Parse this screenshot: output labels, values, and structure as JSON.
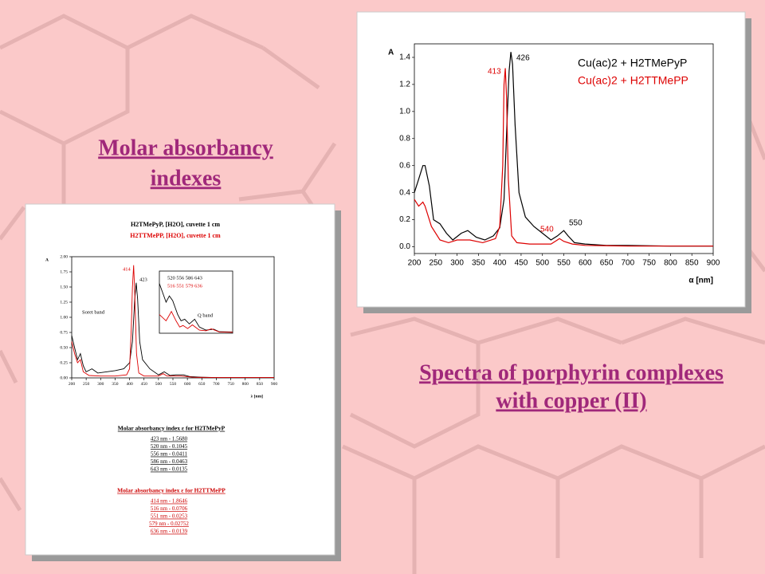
{
  "slide": {
    "left_heading": [
      "Molar absorbancy",
      "indexes"
    ],
    "right_heading": [
      "Spectra of porphyrin complexes",
      "with copper (II)"
    ]
  },
  "tables": [
    {
      "title": "Molar absorbancy index ε for H2TMePyP",
      "color": "#000000",
      "rows": [
        "423 nm - 1.5680",
        "520 nm - 0.1045",
        "556 nm - 0.0411",
        "586 nm - 0.0463",
        "643 nm - 0.0135"
      ]
    },
    {
      "title": "Molar absorbancy index ε for H2TTMePP",
      "color": "#cc0000",
      "rows": [
        "414 nm - 1.8646",
        "516 nm - 0.0706",
        "551 nm - 0.0253",
        "579 nm - 0.02752",
        "636 nm - 0.0139"
      ]
    }
  ],
  "chart_data": [
    {
      "type": "line",
      "y_label": "A",
      "x_label": "α [nm]",
      "legend": true,
      "xlim": [
        200,
        900
      ],
      "xticks": [
        200,
        250,
        300,
        350,
        400,
        450,
        500,
        550,
        600,
        650,
        700,
        750,
        800,
        850,
        900
      ],
      "ylim": [
        -0.05,
        1.5
      ],
      "yticks": [
        {
          "value": 0,
          "label": "0.0"
        },
        0.2,
        0.4,
        0.6,
        0.8,
        {
          "value": 1,
          "label": "1.0"
        },
        1.2,
        1.4
      ],
      "annotations": [
        "426",
        "413",
        "540",
        "550"
      ],
      "series": [
        {
          "name": "Cu(ac)2 + H2TMePyP",
          "color": "#000000",
          "x": [
            200,
            210,
            220,
            225,
            235,
            245,
            260,
            275,
            290,
            310,
            325,
            345,
            365,
            385,
            400,
            410,
            418,
            422,
            426,
            430,
            436,
            445,
            460,
            480,
            500,
            520,
            535,
            550,
            560,
            575,
            600,
            650,
            700,
            800,
            900
          ],
          "values": [
            0.4,
            0.5,
            0.6,
            0.6,
            0.45,
            0.2,
            0.17,
            0.1,
            0.05,
            0.1,
            0.12,
            0.07,
            0.05,
            0.08,
            0.14,
            0.35,
            1.0,
            1.3,
            1.44,
            1.35,
            0.9,
            0.4,
            0.22,
            0.15,
            0.1,
            0.05,
            0.08,
            0.12,
            0.08,
            0.03,
            0.02,
            0.01,
            0.01,
            0.005,
            0.005
          ]
        },
        {
          "name": "Cu(ac)2 + H2TTMePP",
          "color": "#dd0000",
          "x": [
            200,
            210,
            220,
            225,
            240,
            260,
            280,
            300,
            330,
            360,
            390,
            400,
            407,
            410,
            413,
            416,
            420,
            428,
            440,
            470,
            500,
            520,
            535,
            540,
            550,
            570,
            600,
            700,
            900
          ],
          "values": [
            0.35,
            0.3,
            0.33,
            0.3,
            0.15,
            0.05,
            0.03,
            0.05,
            0.05,
            0.03,
            0.06,
            0.15,
            0.6,
            1.2,
            1.32,
            1.1,
            0.5,
            0.08,
            0.03,
            0.02,
            0.02,
            0.02,
            0.05,
            0.06,
            0.04,
            0.02,
            0.01,
            0.005,
            0.005
          ]
        }
      ]
    },
    {
      "type": "line",
      "titles": [
        "H2TMePyP, [H2O], cuvette 1 cm",
        "H2TTMePP, [H2O], cuvette 1 cm"
      ],
      "y_label": "A",
      "x_label": "λ [nm]",
      "xlim": [
        200,
        900
      ],
      "xticks": [
        200,
        250,
        300,
        350,
        400,
        450,
        500,
        550,
        600,
        650,
        700,
        750,
        800,
        850,
        900
      ],
      "ylim": [
        0,
        2
      ],
      "yticks": [
        {
          "value": 0,
          "label": "0.00"
        },
        0.25,
        {
          "value": 0.5,
          "label": "0.50"
        },
        0.75,
        {
          "value": 1,
          "label": "1.00"
        },
        1.25,
        {
          "value": 1.5,
          "label": "1.50"
        },
        1.75,
        {
          "value": 2,
          "label": "2.00"
        }
      ],
      "annotations": [
        "414",
        "423",
        "Soret band"
      ],
      "series": [
        {
          "color": "#000000",
          "x": [
            200,
            210,
            220,
            230,
            240,
            250,
            270,
            290,
            320,
            350,
            380,
            400,
            410,
            418,
            423,
            428,
            435,
            445,
            470,
            500,
            520,
            540,
            560,
            586,
            610,
            650,
            700,
            900
          ],
          "values": [
            0.7,
            0.5,
            0.3,
            0.4,
            0.2,
            0.1,
            0.15,
            0.08,
            0.1,
            0.12,
            0.15,
            0.25,
            0.6,
            1.3,
            1.57,
            1.3,
            0.6,
            0.3,
            0.15,
            0.05,
            0.1,
            0.04,
            0.05,
            0.05,
            0.02,
            0.01,
            0.005,
            0.005
          ]
        },
        {
          "color": "#dd0000",
          "x": [
            200,
            210,
            220,
            230,
            240,
            260,
            300,
            350,
            390,
            400,
            406,
            410,
            414,
            418,
            424,
            432,
            450,
            500,
            516,
            530,
            551,
            579,
            620,
            700,
            900
          ],
          "values": [
            0.6,
            0.4,
            0.25,
            0.3,
            0.1,
            0.04,
            0.03,
            0.03,
            0.05,
            0.15,
            0.8,
            1.5,
            1.86,
            1.4,
            0.4,
            0.08,
            0.03,
            0.03,
            0.07,
            0.03,
            0.03,
            0.03,
            0.01,
            0.005,
            0.005
          ]
        }
      ]
    },
    {
      "type": "line",
      "annotations": [
        "520 556 586 643",
        "516 551 579 636",
        "Q band"
      ],
      "xlim": [
        480,
        700
      ],
      "ylim": [
        0,
        0.2
      ],
      "series": [
        {
          "color": "#000000",
          "x": [
            480,
            500,
            510,
            520,
            535,
            545,
            556,
            570,
            586,
            600,
            620,
            643,
            660,
            700
          ],
          "values": [
            0.16,
            0.1,
            0.12,
            0.105,
            0.06,
            0.04,
            0.045,
            0.03,
            0.045,
            0.02,
            0.01,
            0.013,
            0.005,
            0.004
          ]
        },
        {
          "color": "#dd0000",
          "x": [
            480,
            500,
            516,
            530,
            541,
            551,
            565,
            579,
            600,
            620,
            636,
            660,
            700
          ],
          "values": [
            0.06,
            0.04,
            0.07,
            0.04,
            0.02,
            0.025,
            0.015,
            0.027,
            0.01,
            0.008,
            0.014,
            0.004,
            0.003
          ]
        }
      ]
    }
  ]
}
